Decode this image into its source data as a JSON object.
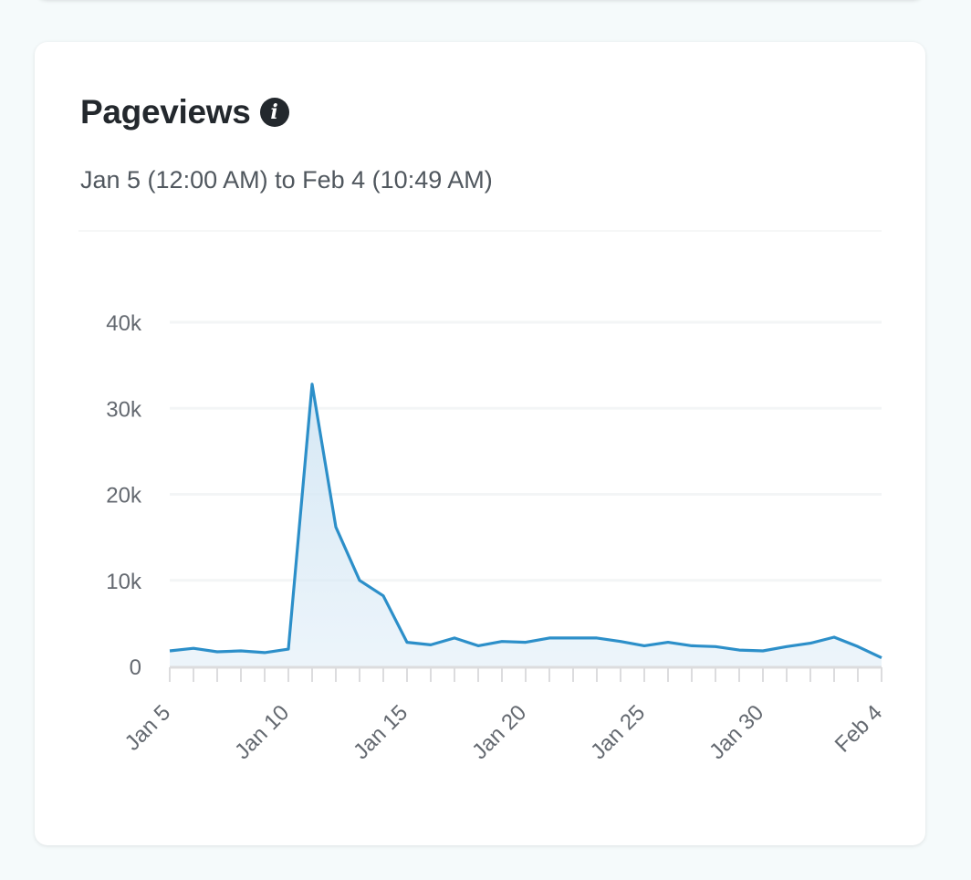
{
  "card": {
    "title": "Pageviews",
    "info_icon": "info-icon",
    "subtitle": "Jan 5 (12:00 AM) to Feb 4 (10:49 AM)"
  },
  "colors": {
    "line": "#2c8fc9",
    "fill": "#d6e8f5",
    "grid": "#f3f5f6",
    "axis": "#dcdcde",
    "tick_text": "#646970"
  },
  "chart_data": {
    "type": "area",
    "x": [
      "Jan 5",
      "Jan 6",
      "Jan 7",
      "Jan 8",
      "Jan 9",
      "Jan 10",
      "Jan 11",
      "Jan 12",
      "Jan 13",
      "Jan 14",
      "Jan 15",
      "Jan 16",
      "Jan 17",
      "Jan 18",
      "Jan 19",
      "Jan 20",
      "Jan 21",
      "Jan 22",
      "Jan 23",
      "Jan 24",
      "Jan 25",
      "Jan 26",
      "Jan 27",
      "Jan 28",
      "Jan 29",
      "Jan 30",
      "Jan 31",
      "Feb 1",
      "Feb 2",
      "Feb 3",
      "Feb 4"
    ],
    "series": [
      {
        "values": [
          1800,
          2100,
          1700,
          1800,
          1600,
          2000,
          32800,
          16200,
          10000,
          8200,
          2800,
          2500,
          3300,
          2400,
          2900,
          2800,
          3300,
          3300,
          3300,
          2900,
          2400,
          2800,
          2400,
          2300,
          1900,
          1800,
          2300,
          2700,
          3400,
          2300,
          1000
        ]
      }
    ],
    "x_tick_labels": [
      "Jan 5",
      "Jan 10",
      "Jan 15",
      "Jan 20",
      "Jan 25",
      "Jan 30",
      "Feb 4"
    ],
    "x_tick_indices": [
      0,
      5,
      10,
      15,
      20,
      25,
      30
    ],
    "y_ticks": [
      0,
      10000,
      20000,
      30000,
      40000
    ],
    "y_tick_labels": [
      "0",
      "10k",
      "20k",
      "30k",
      "40k"
    ],
    "ylim": [
      0,
      40000
    ],
    "grid": true,
    "xlabel": "",
    "ylabel": ""
  }
}
